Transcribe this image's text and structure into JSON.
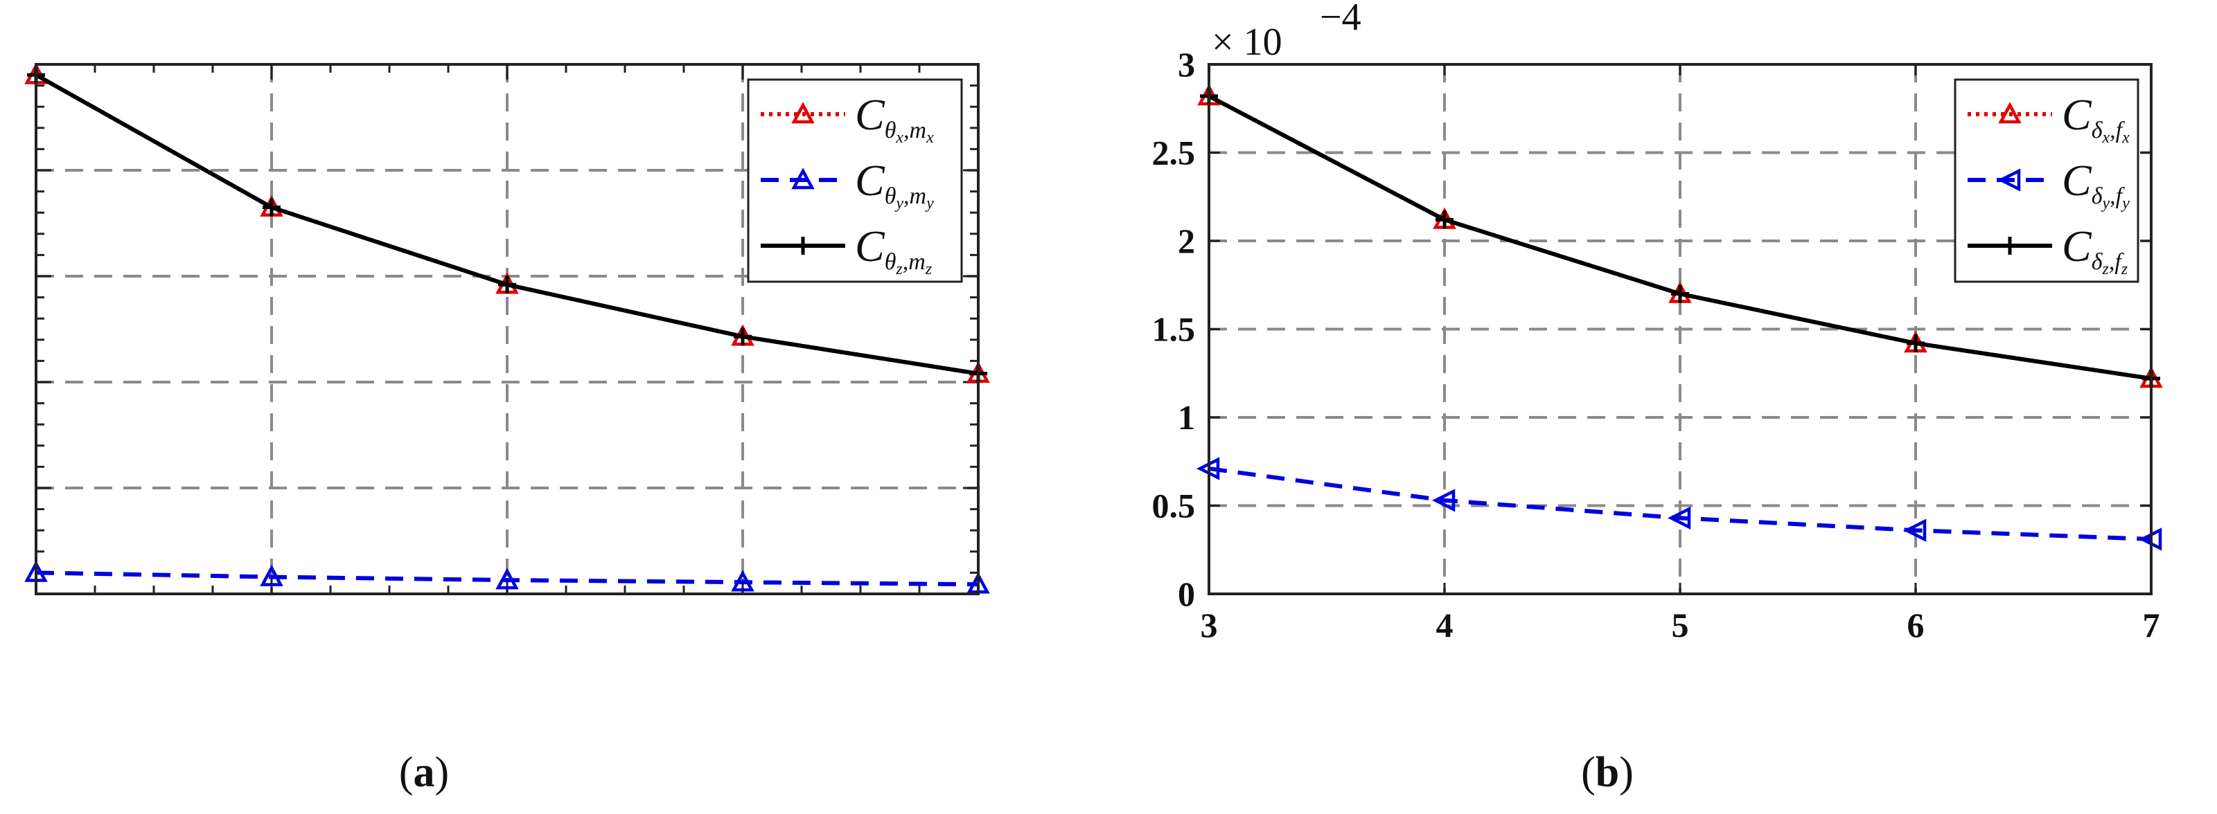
{
  "chart_data": [
    {
      "type": "line",
      "panel_label": "a",
      "x": [
        3,
        4,
        5,
        6,
        7
      ],
      "xlim": [
        3,
        7
      ],
      "ylim": [
        0,
        5
      ],
      "grid": true,
      "legend_position": "top-right",
      "series": [
        {
          "name": "C",
          "sub": "θ",
          "subsub": "x",
          "sub2": "m",
          "sub2sub": "x",
          "color": "#e00000",
          "dash": "dotted",
          "marker": "triangle-up",
          "values": [
            4.9,
            3.65,
            2.92,
            2.43,
            2.08
          ]
        },
        {
          "name": "C",
          "sub": "θ",
          "subsub": "y",
          "sub2": "m",
          "sub2sub": "y",
          "color": "#0000e0",
          "dash": "dashed",
          "marker": "triangle-up",
          "values": [
            0.2,
            0.16,
            0.13,
            0.11,
            0.09
          ]
        },
        {
          "name": "C",
          "sub": "θ",
          "subsub": "z",
          "sub2": "m",
          "sub2sub": "z",
          "color": "#000000",
          "dash": "solid",
          "marker": "plus",
          "values": [
            4.9,
            3.65,
            2.92,
            2.43,
            2.08
          ]
        }
      ]
    },
    {
      "type": "line",
      "panel_label": "b",
      "x": [
        3,
        4,
        5,
        6,
        7
      ],
      "x_ticks": [
        "3",
        "4",
        "5",
        "6",
        "7"
      ],
      "y_ticks": [
        "0",
        "0.5",
        "1",
        "1.5",
        "2",
        "2.5",
        "3"
      ],
      "xlim": [
        3,
        7
      ],
      "ylim": [
        0,
        3
      ],
      "y_multiplier": "× 10",
      "y_exponent": "−4",
      "grid": true,
      "legend_position": "top-right",
      "series": [
        {
          "name": "C",
          "sub": "δ",
          "subsub": "x",
          "sub2": "f",
          "sub2sub": "x",
          "color": "#e00000",
          "dash": "dotted",
          "marker": "triangle-up",
          "values": [
            2.82,
            2.12,
            1.7,
            1.42,
            1.22
          ]
        },
        {
          "name": "C",
          "sub": "δ",
          "subsub": "y",
          "sub2": "f",
          "sub2sub": "y",
          "color": "#0000e0",
          "dash": "dashed",
          "marker": "triangle-left",
          "values": [
            0.71,
            0.53,
            0.43,
            0.36,
            0.31
          ]
        },
        {
          "name": "C",
          "sub": "δ",
          "subsub": "z",
          "sub2": "f",
          "sub2sub": "z",
          "color": "#000000",
          "dash": "solid",
          "marker": "plus",
          "values": [
            2.82,
            2.12,
            1.7,
            1.42,
            1.22
          ]
        }
      ]
    }
  ]
}
